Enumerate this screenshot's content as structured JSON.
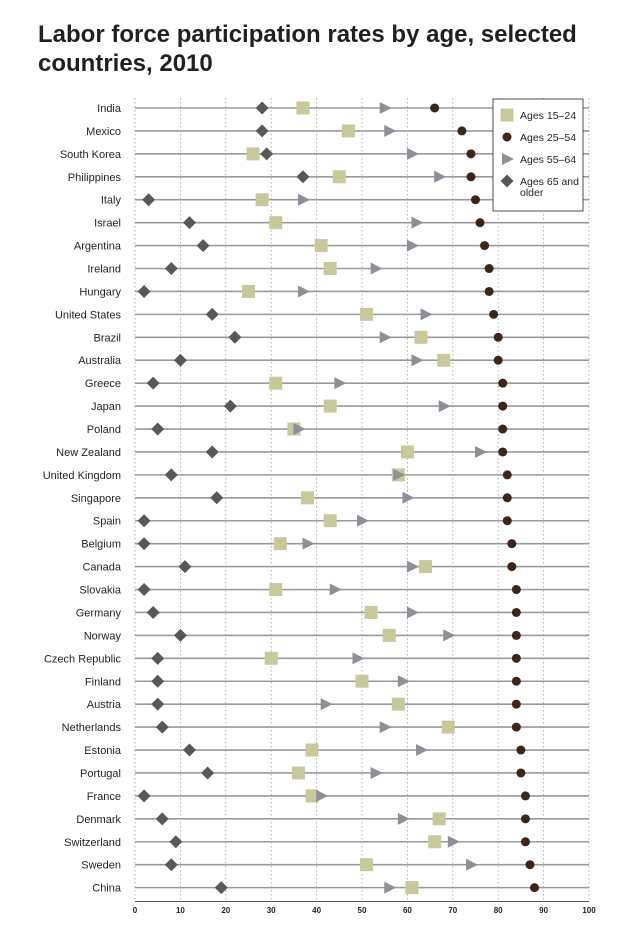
{
  "chart_data": {
    "type": "scatter",
    "title": "Labor force participation rates by age, selected countries, 2010",
    "xlim": [
      0,
      100
    ],
    "x_ticks": [
      "0",
      "10",
      "20",
      "30",
      "40",
      "50",
      "60",
      "70",
      "80",
      "90",
      "100"
    ],
    "grid": "horizontal lines per country, vertical dotted lines every 10",
    "legend_position": "top-right",
    "categories": [
      "India",
      "Mexico",
      "South Korea",
      "Philippines",
      "Italy",
      "Israel",
      "Argentina",
      "Ireland",
      "Hungary",
      "United States",
      "Brazil",
      "Australia",
      "Greece",
      "Japan",
      "Poland",
      "New Zealand",
      "United Kingdom",
      "Singapore",
      "Spain",
      "Belgium",
      "Canada",
      "Slovakia",
      "Germany",
      "Norway",
      "Czech Republic",
      "Finland",
      "Austria",
      "Netherlands",
      "Estonia",
      "Portugal",
      "France",
      "Denmark",
      "Switzerland",
      "Sweden",
      "China"
    ],
    "series": [
      {
        "name": "Ages 15–24",
        "marker": "square",
        "color": "#c8c89a",
        "values": [
          37,
          47,
          26,
          45,
          28,
          31,
          41,
          43,
          25,
          51,
          63,
          68,
          31,
          43,
          35,
          60,
          58,
          38,
          43,
          32,
          64,
          31,
          52,
          56,
          30,
          50,
          58,
          69,
          39,
          36,
          39,
          67,
          66,
          51,
          61
        ]
      },
      {
        "name": "Ages 25–54",
        "marker": "circle",
        "color": "#3d2517",
        "values": [
          66,
          72,
          74,
          74,
          75,
          76,
          77,
          78,
          78,
          79,
          80,
          80,
          81,
          81,
          81,
          81,
          82,
          82,
          82,
          83,
          83,
          84,
          84,
          84,
          84,
          84,
          84,
          84,
          85,
          85,
          86,
          86,
          86,
          87,
          88
        ]
      },
      {
        "name": "Ages 55–64",
        "marker": "triangle",
        "color": "#8f8f99",
        "values": [
          55,
          56,
          61,
          67,
          37,
          62,
          61,
          53,
          37,
          64,
          55,
          62,
          45,
          68,
          36,
          76,
          58,
          60,
          50,
          38,
          61,
          44,
          61,
          69,
          49,
          59,
          42,
          55,
          63,
          53,
          41,
          59,
          70,
          74,
          56
        ]
      },
      {
        "name": "Ages 65 and older",
        "marker": "diamond",
        "color": "#585858",
        "values": [
          28,
          28,
          29,
          37,
          3,
          12,
          15,
          8,
          2,
          17,
          22,
          10,
          4,
          21,
          5,
          17,
          8,
          18,
          2,
          2,
          11,
          2,
          4,
          10,
          5,
          5,
          5,
          6,
          12,
          16,
          2,
          6,
          9,
          8,
          19
        ]
      }
    ]
  }
}
